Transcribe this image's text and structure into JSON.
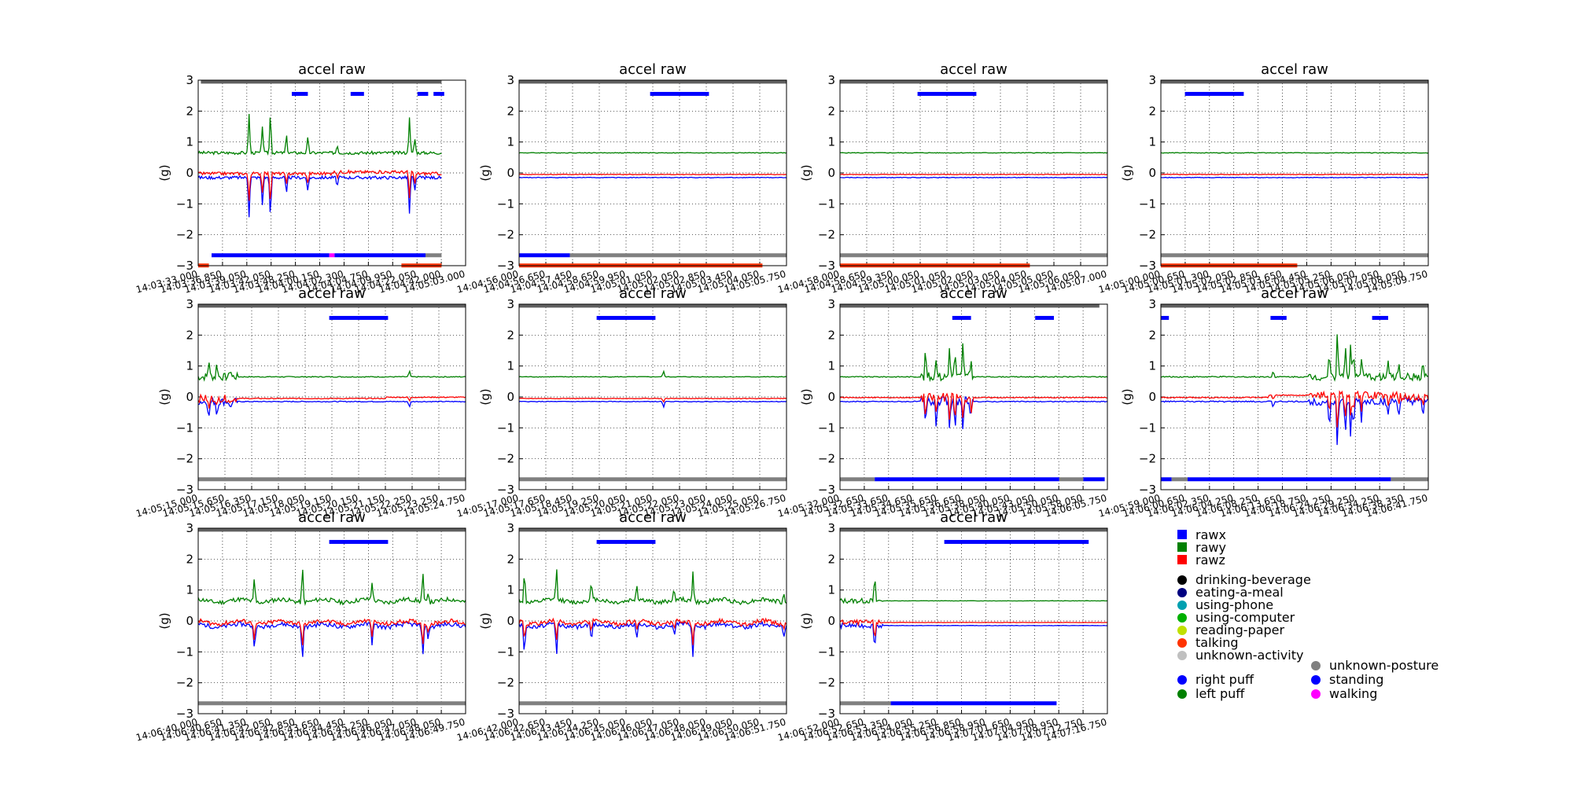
{
  "colors": {
    "rawx": "#0000ff",
    "rawy": "#008000",
    "rawz": "#ff0000",
    "posture_unknown": "#808080",
    "activity_unknown": "#c0c0c0",
    "talking": "#ff3300",
    "standing": "#0000ff",
    "walking": "#ff00ff",
    "puff": "#0000ff",
    "legend": {
      "drinking-beverage": "#000000",
      "eating-a-meal": "#000080",
      "using-phone": "#00a0b0",
      "using-computer": "#00b000",
      "reading-paper": "#c0e000",
      "talking": "#ff3300",
      "unknown-activity": "#c0c0c0",
      "unknown-posture": "#808080",
      "standing": "#0000ff",
      "walking": "#ff00ff",
      "right puff": "#0000ff",
      "left puff": "#008000"
    }
  },
  "legend": {
    "signals": [
      "rawx",
      "rawy",
      "rawz"
    ],
    "activities": [
      "drinking-beverage",
      "eating-a-meal",
      "using-phone",
      "using-computer",
      "reading-paper",
      "talking",
      "unknown-activity"
    ],
    "puffs": [
      "right puff",
      "left puff"
    ],
    "postures": [
      "unknown-posture",
      "standing",
      "walking"
    ]
  },
  "chart_data": [
    {
      "type": "line",
      "title": "accel raw",
      "ylabel": "(g)",
      "ylim": [
        -3,
        3
      ],
      "yticks": [
        "3",
        "2",
        "1",
        "0",
        "−1",
        "−2",
        "−3"
      ],
      "grid": true,
      "tick_labels": [
        "14:03:33.000",
        "14:03:36.850",
        "14:03:39.050",
        "14:03:42.050",
        "14:03:48.250",
        "14:04:00.150",
        "14:04:02.300",
        "14:04:04.750",
        "14:04:09.950",
        "14:04:22.050",
        "14:04:42.000",
        "14:05:03.000"
      ],
      "pattern": "active",
      "spikes": [
        [
          0.19,
          1.3
        ],
        [
          0.24,
          0.9
        ],
        [
          0.27,
          1.4
        ],
        [
          0.33,
          0.6
        ],
        [
          0.41,
          0.5
        ],
        [
          0.52,
          0.3
        ],
        [
          0.79,
          1.2
        ],
        [
          0.81,
          0.5
        ]
      ],
      "puffs": [
        [
          0.35,
          0.41
        ],
        [
          0.57,
          0.62
        ],
        [
          0.82,
          0.86
        ],
        [
          0.88,
          0.92
        ]
      ],
      "top_bar": [
        [
          0.01,
          0.91
        ]
      ],
      "posture": [
        {
          "s": 0.05,
          "e": 0.49,
          "c": "standing"
        },
        {
          "s": 0.49,
          "e": 0.51,
          "c": "walking"
        },
        {
          "s": 0.51,
          "e": 0.85,
          "c": "standing"
        },
        {
          "s": 0.85,
          "e": 0.91,
          "c": "posture_unknown"
        }
      ],
      "activity": [
        {
          "s": 0.0,
          "e": 0.04,
          "c": "talking"
        },
        {
          "s": 0.76,
          "e": 0.91,
          "c": "talking"
        }
      ]
    },
    {
      "type": "line",
      "title": "accel raw",
      "ylabel": "(g)",
      "ylim": [
        -3,
        3
      ],
      "yticks": [
        "3",
        "2",
        "1",
        "0",
        "−1",
        "−2",
        "−3"
      ],
      "grid": true,
      "tick_labels": [
        "14:04:56.000",
        "14:04:56.650",
        "14:04:57.450",
        "14:04:58.650",
        "14:04:59.950",
        "14:05:01.050",
        "14:05:02.050",
        "14:05:02.850",
        "14:05:03.450",
        "14:05:04.050",
        "14:05:05.750"
      ],
      "pattern": "flat",
      "spikes": [],
      "puffs": [
        [
          0.49,
          0.71
        ]
      ],
      "top_bar": [
        [
          0.0,
          1.0
        ]
      ],
      "posture": [
        {
          "s": 0.0,
          "e": 0.19,
          "c": "standing"
        },
        {
          "s": 0.19,
          "e": 1.0,
          "c": "posture_unknown"
        }
      ],
      "activity": [
        {
          "s": 0.0,
          "e": 0.91,
          "c": "talking"
        }
      ]
    },
    {
      "type": "line",
      "title": "accel raw",
      "ylabel": "(g)",
      "ylim": [
        -3,
        3
      ],
      "yticks": [
        "3",
        "2",
        "1",
        "0",
        "−1",
        "−2",
        "−3"
      ],
      "grid": true,
      "tick_labels": [
        "14:04:58.000",
        "14:04:58.650",
        "14:04:59.350",
        "14:05:00.050",
        "14:05:01.050",
        "14:05:02.050",
        "14:05:03.050",
        "14:05:04.050",
        "14:05:05.050",
        "14:05:06.050",
        "14:05:07.000"
      ],
      "pattern": "flat",
      "spikes": [],
      "puffs": [
        [
          0.29,
          0.51
        ]
      ],
      "top_bar": [
        [
          0.0,
          1.0
        ]
      ],
      "posture": [
        {
          "s": 0.0,
          "e": 1.0,
          "c": "posture_unknown"
        }
      ],
      "activity": [
        {
          "s": 0.0,
          "e": 0.71,
          "c": "talking"
        }
      ]
    },
    {
      "type": "line",
      "title": "accel raw",
      "ylabel": "(g)",
      "ylim": [
        -3,
        3
      ],
      "yticks": [
        "3",
        "2",
        "1",
        "0",
        "−1",
        "−2",
        "−3"
      ],
      "grid": true,
      "tick_labels": [
        "14:05:00.000",
        "14:05:00.650",
        "14:05:01.300",
        "14:05:02.050",
        "14:05:02.850",
        "14:05:03.650",
        "14:05:04.450",
        "14:05:05.250",
        "14:05:06.050",
        "14:05:07.050",
        "14:05:08.050",
        "14:05:09.750"
      ],
      "pattern": "flat",
      "spikes": [],
      "puffs": [
        [
          0.09,
          0.31
        ]
      ],
      "top_bar": [
        [
          0.0,
          1.0
        ]
      ],
      "posture": [
        {
          "s": 0.0,
          "e": 1.0,
          "c": "posture_unknown"
        }
      ],
      "activity": [
        {
          "s": 0.0,
          "e": 0.51,
          "c": "talking"
        }
      ]
    },
    {
      "type": "line",
      "title": "accel raw",
      "ylabel": "(g)",
      "ylim": [
        -3,
        3
      ],
      "yticks": [
        "3",
        "2",
        "1",
        "0",
        "−1",
        "−2",
        "−3"
      ],
      "grid": true,
      "tick_labels": [
        "14:05:15.000",
        "14:05:15.650",
        "14:05:16.350",
        "14:05:17.150",
        "14:05:18.050",
        "14:05:19.150",
        "14:05:20.150",
        "14:05:21.150",
        "14:05:22.250",
        "14:05:23.250",
        "14:05:24.750"
      ],
      "pattern": "start",
      "spikes": [
        [
          0.04,
          0.6
        ],
        [
          0.07,
          0.5
        ],
        [
          0.12,
          0.3
        ],
        [
          0.79,
          0.2
        ]
      ],
      "puffs": [
        [
          0.49,
          0.71
        ]
      ],
      "top_bar": [
        [
          0.0,
          1.0
        ]
      ],
      "posture": [
        {
          "s": 0.0,
          "e": 1.0,
          "c": "posture_unknown"
        }
      ],
      "activity": []
    },
    {
      "type": "line",
      "title": "accel raw",
      "ylabel": "(g)",
      "ylim": [
        -3,
        3
      ],
      "yticks": [
        "3",
        "2",
        "1",
        "0",
        "−1",
        "−2",
        "−3"
      ],
      "grid": true,
      "tick_labels": [
        "14:05:17.000",
        "14:05:17.650",
        "14:05:18.450",
        "14:05:19.250",
        "14:05:20.050",
        "14:05:21.050",
        "14:05:22.050",
        "14:05:23.050",
        "14:05:24.050",
        "14:05:25.050",
        "14:05:26.750"
      ],
      "pattern": "flat",
      "spikes": [
        [
          0.54,
          0.2
        ]
      ],
      "puffs": [
        [
          0.29,
          0.51
        ]
      ],
      "top_bar": [
        [
          0.0,
          1.0
        ]
      ],
      "posture": [
        {
          "s": 0.0,
          "e": 1.0,
          "c": "posture_unknown"
        }
      ],
      "activity": []
    },
    {
      "type": "line",
      "title": "accel raw",
      "ylabel": "(g)",
      "ylim": [
        -3,
        3
      ],
      "yticks": [
        "3",
        "2",
        "1",
        "0",
        "−1",
        "−2",
        "−3"
      ],
      "grid": true,
      "tick_labels": [
        "14:05:32.000",
        "14:05:32.650",
        "14:05:33.650",
        "14:05:34.650",
        "14:05:35.650",
        "14:05:36.650",
        "14:05:38.050",
        "14:05:40.050",
        "14:05:43.050",
        "14:05:50.050",
        "14:05:58.050",
        "14:06:05.750"
      ],
      "pattern": "burst",
      "spikes": [
        [
          0.32,
          0.9
        ],
        [
          0.36,
          0.8
        ],
        [
          0.41,
          1.1
        ],
        [
          0.43,
          0.9
        ],
        [
          0.46,
          1.2
        ],
        [
          0.49,
          0.6
        ]
      ],
      "puffs": [
        [
          0.42,
          0.49
        ],
        [
          0.73,
          0.8
        ]
      ],
      "top_bar": [
        [
          0.0,
          0.97
        ]
      ],
      "posture": [
        {
          "s": 0.0,
          "e": 0.13,
          "c": "posture_unknown"
        },
        {
          "s": 0.13,
          "e": 0.82,
          "c": "standing"
        },
        {
          "s": 0.82,
          "e": 0.91,
          "c": "posture_unknown"
        },
        {
          "s": 0.91,
          "e": 0.99,
          "c": "standing"
        }
      ],
      "activity": []
    },
    {
      "type": "line",
      "title": "accel raw",
      "ylabel": "(g)",
      "ylim": [
        -3,
        3
      ],
      "yticks": [
        "3",
        "2",
        "1",
        "0",
        "−1",
        "−2",
        "−3"
      ],
      "grid": true,
      "tick_labels": [
        "14:05:59.000",
        "14:06:00.650",
        "14:06:02.350",
        "14:06:04.250",
        "14:06:08.250",
        "14:06:13.650",
        "14:06:18.750",
        "14:06:24.250",
        "14:06:29.250",
        "14:06:34.250",
        "14:06:38.350",
        "14:06:41.750"
      ],
      "pattern": "late",
      "spikes": [
        [
          0.42,
          0.2
        ],
        [
          0.63,
          0.9
        ],
        [
          0.66,
          1.7
        ],
        [
          0.69,
          1.1
        ],
        [
          0.71,
          1.2
        ],
        [
          0.72,
          0.9
        ],
        [
          0.75,
          0.6
        ],
        [
          0.85,
          0.5
        ],
        [
          0.89,
          0.5
        ],
        [
          0.98,
          0.5
        ]
      ],
      "puffs": [
        [
          0.0,
          0.03
        ],
        [
          0.41,
          0.47
        ],
        [
          0.79,
          0.85
        ]
      ],
      "top_bar": [
        [
          0.0,
          1.0
        ]
      ],
      "posture": [
        {
          "s": 0.0,
          "e": 0.04,
          "c": "standing"
        },
        {
          "s": 0.04,
          "e": 0.1,
          "c": "posture_unknown"
        },
        {
          "s": 0.1,
          "e": 0.86,
          "c": "standing"
        },
        {
          "s": 0.86,
          "e": 1.0,
          "c": "posture_unknown"
        }
      ],
      "activity": []
    },
    {
      "type": "line",
      "title": "accel raw",
      "ylabel": "(g)",
      "ylim": [
        -3,
        3
      ],
      "yticks": [
        "3",
        "2",
        "1",
        "0",
        "−1",
        "−2",
        "−3"
      ],
      "grid": true,
      "tick_labels": [
        "14:06:40.000",
        "14:06:40.650",
        "14:06:41.350",
        "14:06:42.050",
        "14:06:42.850",
        "14:06:43.650",
        "14:06:44.450",
        "14:06:45.250",
        "14:06:46.050",
        "14:06:47.050",
        "14:06:48.050",
        "14:06:49.750"
      ],
      "pattern": "wavy",
      "spikes": [
        [
          0.21,
          0.8
        ],
        [
          0.39,
          1.2
        ],
        [
          0.65,
          0.6
        ],
        [
          0.84,
          1.0
        ],
        [
          0.86,
          0.4
        ]
      ],
      "puffs": [
        [
          0.49,
          0.71
        ]
      ],
      "top_bar": [
        [
          0.0,
          1.0
        ]
      ],
      "posture": [
        {
          "s": 0.0,
          "e": 1.0,
          "c": "posture_unknown"
        }
      ],
      "activity": []
    },
    {
      "type": "line",
      "title": "accel raw",
      "ylabel": "(g)",
      "ylim": [
        -3,
        3
      ],
      "yticks": [
        "3",
        "2",
        "1",
        "0",
        "−1",
        "−2",
        "−3"
      ],
      "grid": true,
      "tick_labels": [
        "14:06:42.000",
        "14:06:42.650",
        "14:06:43.450",
        "14:06:44.250",
        "14:06:45.050",
        "14:06:46.050",
        "14:06:47.050",
        "14:06:48.050",
        "14:06:49.050",
        "14:06:50.050",
        "14:06:51.750"
      ],
      "pattern": "wavy",
      "spikes": [
        [
          0.02,
          1.0
        ],
        [
          0.14,
          1.1
        ],
        [
          0.27,
          0.6
        ],
        [
          0.44,
          0.5
        ],
        [
          0.58,
          0.4
        ],
        [
          0.65,
          1.0
        ],
        [
          0.99,
          0.3
        ]
      ],
      "puffs": [
        [
          0.29,
          0.51
        ]
      ],
      "top_bar": [
        [
          0.0,
          1.0
        ]
      ],
      "posture": [
        {
          "s": 0.0,
          "e": 1.0,
          "c": "posture_unknown"
        }
      ],
      "activity": []
    },
    {
      "type": "line",
      "title": "accel raw",
      "ylabel": "(g)",
      "ylim": [
        -3,
        3
      ],
      "yticks": [
        "3",
        "2",
        "1",
        "0",
        "−1",
        "−2",
        "−3"
      ],
      "grid": true,
      "tick_labels": [
        "14:06:52.000",
        "14:06:52.650",
        "14:06:53.350",
        "14:06:54.050",
        "14:06:55.250",
        "14:06:56.850",
        "14:06:58.950",
        "14:07:01.650",
        "14:07:04.950",
        "14:07:08.950",
        "14:07:12.750",
        "14:07:16.750"
      ],
      "pattern": "early",
      "spikes": [
        [
          0.13,
          0.8
        ]
      ],
      "puffs": [
        [
          0.39,
          0.93
        ]
      ],
      "top_bar": [
        [
          0.0,
          1.0
        ]
      ],
      "posture": [
        {
          "s": 0.0,
          "e": 0.19,
          "c": "posture_unknown"
        },
        {
          "s": 0.19,
          "e": 0.81,
          "c": "standing"
        }
      ],
      "activity": []
    }
  ]
}
